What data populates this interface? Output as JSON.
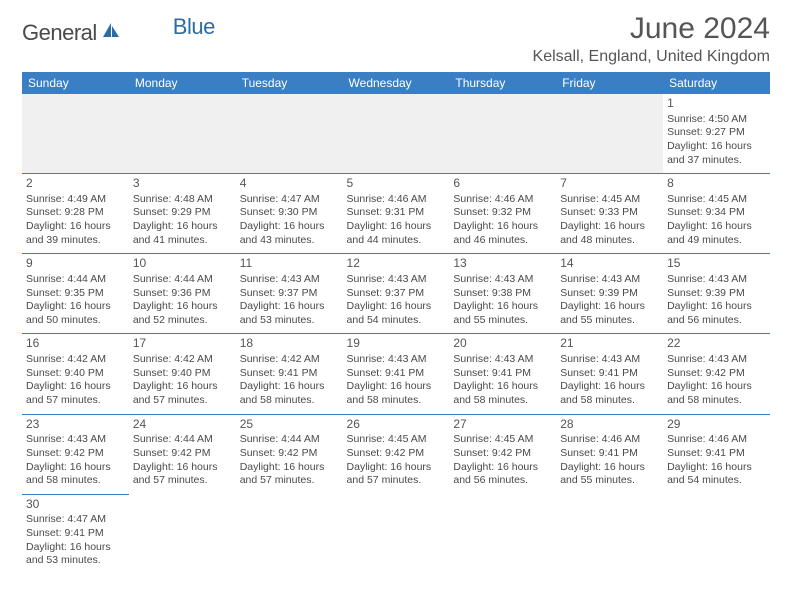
{
  "brand": {
    "name_main": "General",
    "name_sub": "Blue",
    "text_color_main": "#4a4a4a",
    "text_color_sub": "#2d6ca2",
    "icon_color": "#2d6ca2"
  },
  "header": {
    "title": "June 2024",
    "location": "Kelsall, England, United Kingdom"
  },
  "colors": {
    "header_bg": "#3a7fc4",
    "header_text": "#ffffff",
    "cell_border": "#3a7fc4",
    "empty_bg": "#f0f0f0",
    "text": "#4a4a4a"
  },
  "day_headers": [
    "Sunday",
    "Monday",
    "Tuesday",
    "Wednesday",
    "Thursday",
    "Friday",
    "Saturday"
  ],
  "weeks": [
    [
      null,
      null,
      null,
      null,
      null,
      null,
      {
        "n": "1",
        "sunrise": "4:50 AM",
        "sunset": "9:27 PM",
        "daylight": "16 hours and 37 minutes."
      }
    ],
    [
      {
        "n": "2",
        "sunrise": "4:49 AM",
        "sunset": "9:28 PM",
        "daylight": "16 hours and 39 minutes."
      },
      {
        "n": "3",
        "sunrise": "4:48 AM",
        "sunset": "9:29 PM",
        "daylight": "16 hours and 41 minutes."
      },
      {
        "n": "4",
        "sunrise": "4:47 AM",
        "sunset": "9:30 PM",
        "daylight": "16 hours and 43 minutes."
      },
      {
        "n": "5",
        "sunrise": "4:46 AM",
        "sunset": "9:31 PM",
        "daylight": "16 hours and 44 minutes."
      },
      {
        "n": "6",
        "sunrise": "4:46 AM",
        "sunset": "9:32 PM",
        "daylight": "16 hours and 46 minutes."
      },
      {
        "n": "7",
        "sunrise": "4:45 AM",
        "sunset": "9:33 PM",
        "daylight": "16 hours and 48 minutes."
      },
      {
        "n": "8",
        "sunrise": "4:45 AM",
        "sunset": "9:34 PM",
        "daylight": "16 hours and 49 minutes."
      }
    ],
    [
      {
        "n": "9",
        "sunrise": "4:44 AM",
        "sunset": "9:35 PM",
        "daylight": "16 hours and 50 minutes."
      },
      {
        "n": "10",
        "sunrise": "4:44 AM",
        "sunset": "9:36 PM",
        "daylight": "16 hours and 52 minutes."
      },
      {
        "n": "11",
        "sunrise": "4:43 AM",
        "sunset": "9:37 PM",
        "daylight": "16 hours and 53 minutes."
      },
      {
        "n": "12",
        "sunrise": "4:43 AM",
        "sunset": "9:37 PM",
        "daylight": "16 hours and 54 minutes."
      },
      {
        "n": "13",
        "sunrise": "4:43 AM",
        "sunset": "9:38 PM",
        "daylight": "16 hours and 55 minutes."
      },
      {
        "n": "14",
        "sunrise": "4:43 AM",
        "sunset": "9:39 PM",
        "daylight": "16 hours and 55 minutes."
      },
      {
        "n": "15",
        "sunrise": "4:43 AM",
        "sunset": "9:39 PM",
        "daylight": "16 hours and 56 minutes."
      }
    ],
    [
      {
        "n": "16",
        "sunrise": "4:42 AM",
        "sunset": "9:40 PM",
        "daylight": "16 hours and 57 minutes."
      },
      {
        "n": "17",
        "sunrise": "4:42 AM",
        "sunset": "9:40 PM",
        "daylight": "16 hours and 57 minutes."
      },
      {
        "n": "18",
        "sunrise": "4:42 AM",
        "sunset": "9:41 PM",
        "daylight": "16 hours and 58 minutes."
      },
      {
        "n": "19",
        "sunrise": "4:43 AM",
        "sunset": "9:41 PM",
        "daylight": "16 hours and 58 minutes."
      },
      {
        "n": "20",
        "sunrise": "4:43 AM",
        "sunset": "9:41 PM",
        "daylight": "16 hours and 58 minutes."
      },
      {
        "n": "21",
        "sunrise": "4:43 AM",
        "sunset": "9:41 PM",
        "daylight": "16 hours and 58 minutes."
      },
      {
        "n": "22",
        "sunrise": "4:43 AM",
        "sunset": "9:42 PM",
        "daylight": "16 hours and 58 minutes."
      }
    ],
    [
      {
        "n": "23",
        "sunrise": "4:43 AM",
        "sunset": "9:42 PM",
        "daylight": "16 hours and 58 minutes."
      },
      {
        "n": "24",
        "sunrise": "4:44 AM",
        "sunset": "9:42 PM",
        "daylight": "16 hours and 57 minutes."
      },
      {
        "n": "25",
        "sunrise": "4:44 AM",
        "sunset": "9:42 PM",
        "daylight": "16 hours and 57 minutes."
      },
      {
        "n": "26",
        "sunrise": "4:45 AM",
        "sunset": "9:42 PM",
        "daylight": "16 hours and 57 minutes."
      },
      {
        "n": "27",
        "sunrise": "4:45 AM",
        "sunset": "9:42 PM",
        "daylight": "16 hours and 56 minutes."
      },
      {
        "n": "28",
        "sunrise": "4:46 AM",
        "sunset": "9:41 PM",
        "daylight": "16 hours and 55 minutes."
      },
      {
        "n": "29",
        "sunrise": "4:46 AM",
        "sunset": "9:41 PM",
        "daylight": "16 hours and 54 minutes."
      }
    ],
    [
      {
        "n": "30",
        "sunrise": "4:47 AM",
        "sunset": "9:41 PM",
        "daylight": "16 hours and 53 minutes."
      },
      null,
      null,
      null,
      null,
      null,
      null
    ]
  ],
  "labels": {
    "sunrise_prefix": "Sunrise: ",
    "sunset_prefix": "Sunset: ",
    "daylight_prefix": "Daylight: "
  }
}
